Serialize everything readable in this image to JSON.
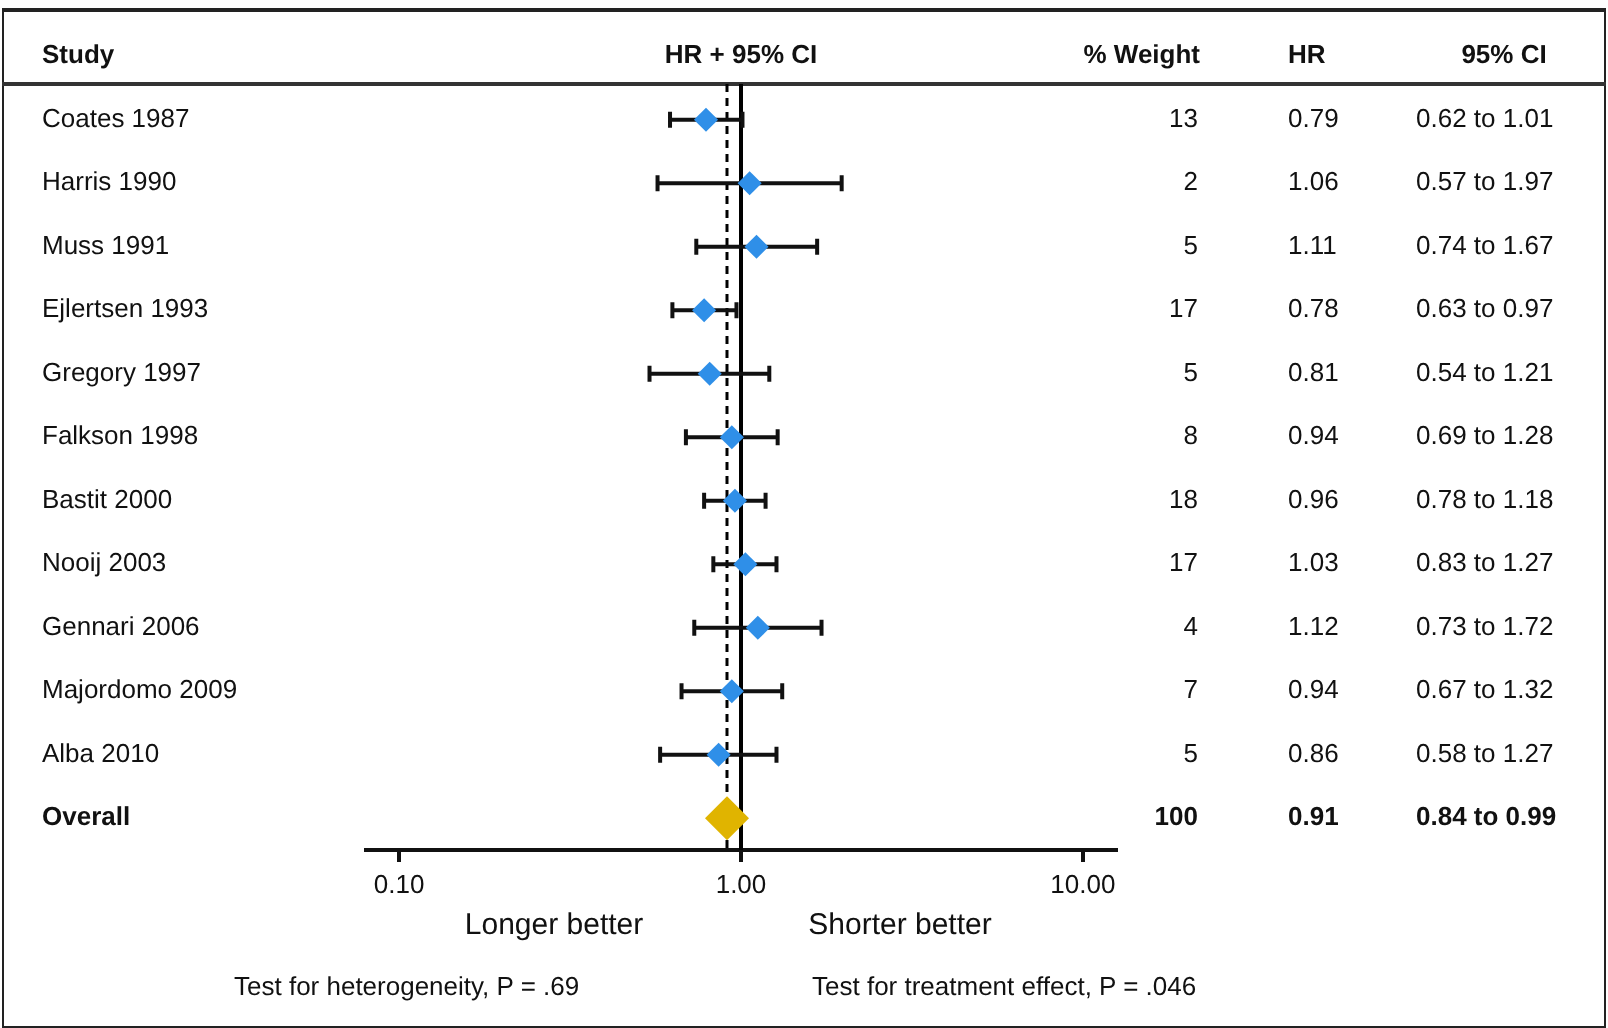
{
  "chart_data": {
    "type": "scatter",
    "orientation": "horizontal",
    "title": "HR + 95% CI",
    "ylabel": "Study",
    "log": "x",
    "marker": "diamond",
    "categories": [
      "Coates 1987",
      "Harris 1990",
      "Muss 1991",
      "Ejlertsen 1993",
      "Gregory 1997",
      "Falkson 1998",
      "Bastit 2000",
      "Nooij 2003",
      "Gennari 2006",
      "Majordomo 2009",
      "Alba 2010",
      "Overall"
    ],
    "xlim": [
      0.08,
      12.5
    ],
    "xticks": [
      {
        "value": 0.1,
        "label": "0.10"
      },
      {
        "value": 1,
        "label": "1.00"
      },
      {
        "value": 10,
        "label": "10.00"
      }
    ],
    "series": [
      {
        "colors": [
          "#2f8fe8",
          "#2f8fe8",
          "#2f8fe8",
          "#2f8fe8",
          "#2f8fe8",
          "#2f8fe8",
          "#2f8fe8",
          "#2f8fe8",
          "#2f8fe8",
          "#2f8fe8",
          "#2f8fe8",
          "#e0b400"
        ],
        "values": [
          0.79,
          1.06,
          1.11,
          0.78,
          0.81,
          0.94,
          0.96,
          1.03,
          1.12,
          0.94,
          0.86,
          0.91
        ],
        "sizes": [
          0.3,
          0.3,
          0.3,
          0.3,
          0.3,
          0.3,
          0.3,
          0.3,
          0.3,
          0.3,
          0.3,
          1
        ],
        "errors": [
          [
            0.62,
            1.01
          ],
          [
            0.57,
            1.97
          ],
          [
            0.74,
            1.67
          ],
          [
            0.63,
            0.97
          ],
          [
            0.54,
            1.21
          ],
          [
            0.69,
            1.28
          ],
          [
            0.78,
            1.18
          ],
          [
            0.83,
            1.27
          ],
          [
            0.73,
            1.72
          ],
          [
            0.67,
            1.32
          ],
          [
            0.58,
            1.27
          ],
          null
        ],
        "value_labels": [
          "0.62 to 1.01",
          "0.57 to 1.97",
          "0.74 to 1.67",
          "0.63 to 0.97",
          "0.54 to 1.21",
          "0.69 to 1.28",
          "0.78 to 1.18",
          "0.83 to 1.27",
          "0.73 to 1.72",
          "0.67 to 1.32",
          "0.58 to 1.27",
          "0.84 to 0.99"
        ]
      }
    ],
    "ref_lines": [
      {
        "axis": "x",
        "value": 1,
        "line_style": "solid"
      },
      {
        "axis": "x",
        "value": 0.91,
        "line_style": "dashed"
      }
    ],
    "annotations": [
      "% Weight",
      "13",
      "2",
      "5",
      "17",
      "5",
      "8",
      "18",
      "17",
      "4",
      "7",
      "5",
      "100",
      "HR",
      "0.79",
      "1.06",
      "1.11",
      "0.78",
      "0.81",
      "0.94",
      "0.96",
      "1.03",
      "1.12",
      "0.94",
      "0.86",
      "0.91",
      "95% CI",
      "Longer better",
      "Shorter better",
      "Test for heterogeneity, P = .69",
      "Test for treatment effect, P = .046"
    ]
  }
}
